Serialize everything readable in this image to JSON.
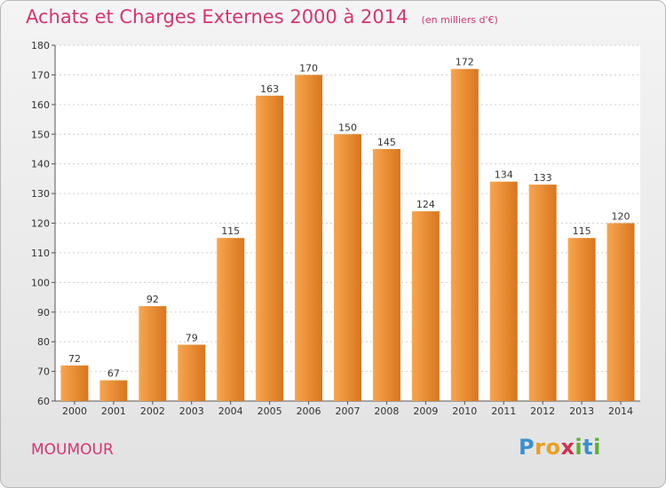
{
  "header": {
    "title": "Achats et Charges Externes 2000 à 2014",
    "unit_note": "(en milliers d'€)"
  },
  "footer": {
    "commune": "MOUMOUR",
    "brand": {
      "letters": [
        "P",
        "r",
        "o",
        "x",
        "i",
        "t",
        "i"
      ],
      "colors": [
        "#3a8fd0",
        "#e8a020",
        "#e8a020",
        "#d03050",
        "#60b030",
        "#3a8fd0",
        "#60b030"
      ]
    }
  },
  "colors": {
    "bar_light": "#f7a54f",
    "bar_dark": "#d9761d",
    "title": "#d63470"
  },
  "chart_data": {
    "type": "bar",
    "title": "Achats et Charges Externes 2000 à 2014",
    "xlabel": "",
    "ylabel": "",
    "categories": [
      "2000",
      "2001",
      "2002",
      "2003",
      "2004",
      "2005",
      "2006",
      "2007",
      "2008",
      "2009",
      "2010",
      "2011",
      "2012",
      "2013",
      "2014"
    ],
    "values": [
      72,
      67,
      92,
      79,
      115,
      163,
      170,
      150,
      145,
      124,
      172,
      134,
      133,
      115,
      120
    ],
    "ylim": [
      60,
      180
    ],
    "yticks": [
      60,
      70,
      80,
      90,
      100,
      110,
      120,
      130,
      140,
      150,
      160,
      170,
      180
    ],
    "grid": true
  }
}
